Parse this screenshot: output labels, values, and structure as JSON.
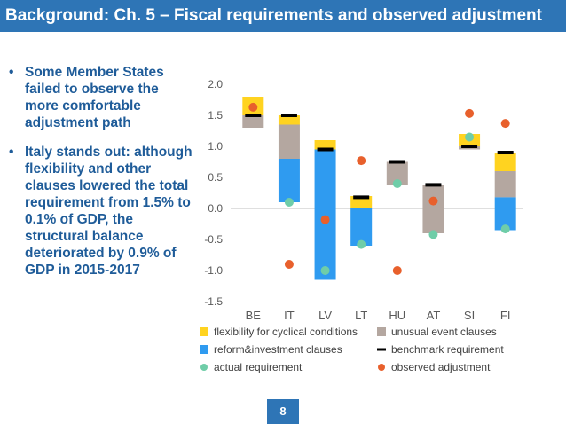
{
  "header": {
    "title": "Background: Ch. 5 – Fiscal requirements and observed adjustment"
  },
  "bullets": [
    "Some Member States failed to observe the more comfortable adjustment path",
    "Italy stands out: although flexibility and other clauses lowered the total requirement from 1.5% to 0.1% of GDP, the structural balance deteriorated by 0.9% of GDP in 2015-2017"
  ],
  "bullet_marker": "•",
  "footer": {
    "page_number": "8"
  },
  "chart_data": {
    "type": "bar",
    "title": "",
    "xlabel": "",
    "ylabel": "",
    "ylim": [
      -1.5,
      2.0
    ],
    "yticks": [
      "2.0",
      "1.5",
      "1.0",
      "0.5",
      "0.0",
      "-0.5",
      "-1.0",
      "-1.5"
    ],
    "categories": [
      "BE",
      "IT",
      "LV",
      "LT",
      "HU",
      "AT",
      "SI",
      "FI"
    ],
    "grid": false,
    "legend_position": "bottom",
    "stack_segments": {
      "flexibility for cyclical conditions": [
        [
          1.5,
          1.8
        ],
        [
          1.35,
          1.5
        ],
        [
          0.95,
          1.1
        ],
        [
          0.0,
          0.2
        ],
        null,
        null,
        [
          1.0,
          1.2
        ],
        [
          0.6,
          0.9
        ]
      ],
      "unusual event clauses": [
        [
          1.3,
          1.5
        ],
        [
          0.8,
          1.35
        ],
        null,
        null,
        [
          0.38,
          0.75
        ],
        [
          -0.4,
          0.38
        ],
        [
          0.95,
          1.0
        ],
        [
          0.18,
          0.6
        ]
      ],
      "reform&investment clauses": [
        null,
        [
          0.1,
          0.8
        ],
        [
          -1.15,
          0.95
        ],
        [
          -0.6,
          0.0
        ],
        null,
        null,
        null,
        [
          -0.35,
          0.18
        ]
      ]
    },
    "series": [
      {
        "name": "benchmark requirement",
        "values": [
          1.5,
          1.5,
          0.95,
          0.18,
          0.75,
          0.38,
          1.0,
          0.9
        ]
      },
      {
        "name": "actual requirement",
        "values": [
          null,
          0.1,
          -1.0,
          -0.58,
          0.4,
          -0.42,
          1.15,
          -0.33
        ]
      },
      {
        "name": "observed adjustment",
        "values": [
          1.63,
          -0.9,
          -0.18,
          0.77,
          -1.0,
          0.12,
          1.53,
          1.37
        ]
      }
    ],
    "legend": [
      {
        "label": "flexibility for cyclical conditions",
        "marker": "square",
        "color": "#FFD320"
      },
      {
        "label": "unusual event clauses",
        "marker": "square",
        "color": "#B4A7A0"
      },
      {
        "label": "reform&investment clauses",
        "marker": "square",
        "color": "#2F9BF0"
      },
      {
        "label": "benchmark requirement",
        "marker": "dash",
        "color": "#000000"
      },
      {
        "label": "actual requirement",
        "marker": "circle",
        "color": "#6FCDA8"
      },
      {
        "label": "observed adjustment",
        "marker": "circle",
        "color": "#E8602C"
      }
    ],
    "colors": {
      "flexibility for cyclical conditions": "#FFD320",
      "unusual event clauses": "#B4A7A0",
      "reform&investment clauses": "#2F9BF0",
      "benchmark requirement": "#000000",
      "actual requirement": "#6FCDA8",
      "observed adjustment": "#E8602C"
    }
  }
}
